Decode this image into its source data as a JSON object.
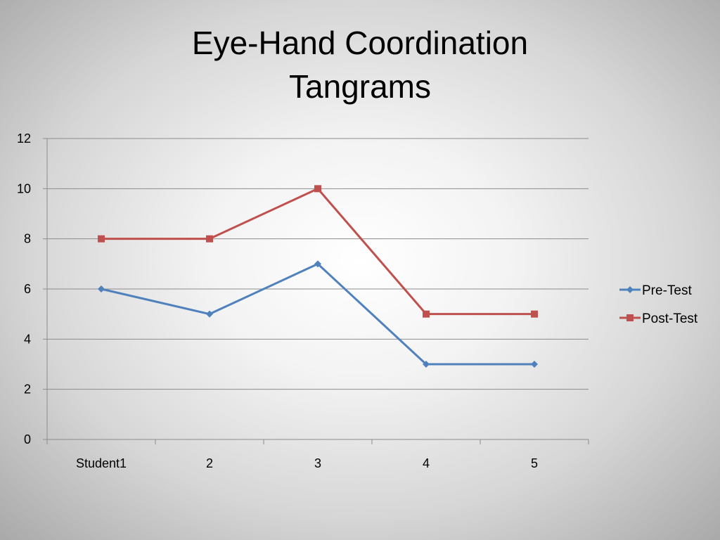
{
  "slide": {
    "title_line1": "Eye-Hand Coordination",
    "title_line2": "Tangrams"
  },
  "chart_data": {
    "type": "line",
    "title": "",
    "xlabel": "",
    "ylabel": "",
    "categories": [
      "Student1",
      "2",
      "3",
      "4",
      "5"
    ],
    "ylim": [
      0,
      12
    ],
    "yticks": [
      0,
      2,
      4,
      6,
      8,
      10,
      12
    ],
    "grid": true,
    "legend_position": "right",
    "series": [
      {
        "name": "Pre-Test",
        "values": [
          6,
          5,
          7,
          3,
          3
        ],
        "color": "#4f81bd",
        "marker": "diamond"
      },
      {
        "name": "Post-Test",
        "values": [
          8,
          8,
          10,
          5,
          5
        ],
        "color": "#c0504d",
        "marker": "square"
      }
    ]
  }
}
